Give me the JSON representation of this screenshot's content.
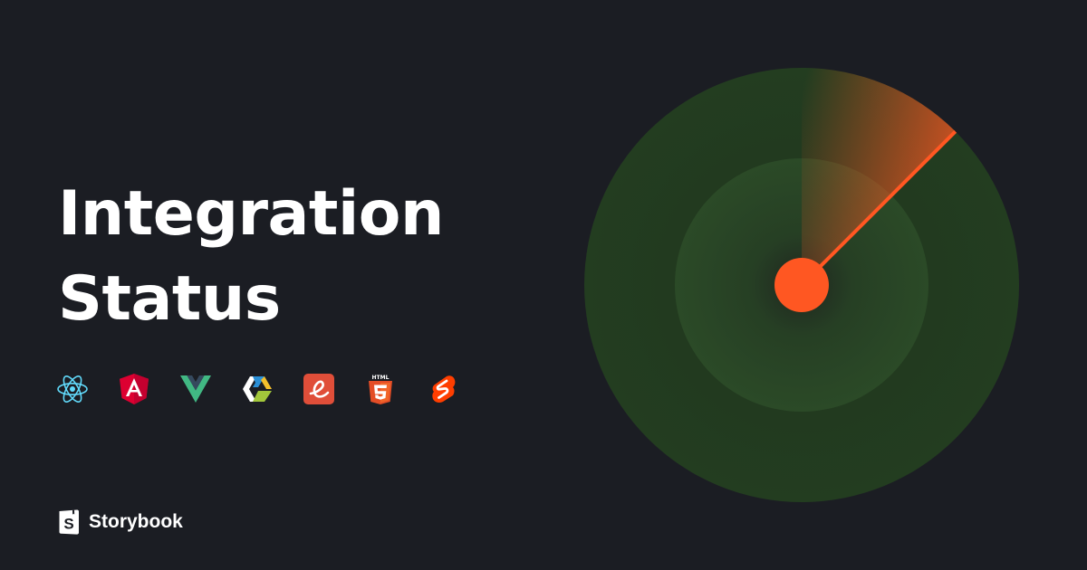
{
  "title": {
    "line1": "Integration",
    "line2": "Status"
  },
  "frameworks": [
    {
      "icon": "react-icon",
      "color": "#61dafb"
    },
    {
      "icon": "angular-icon",
      "color": "#dd0031"
    },
    {
      "icon": "vue-icon",
      "color": "#41b883"
    },
    {
      "icon": "web-components-icon",
      "color": "#a2c73b"
    },
    {
      "icon": "ember-icon",
      "color": "#e04e39"
    },
    {
      "icon": "html5-icon",
      "color": "#e44d26"
    },
    {
      "icon": "svelte-icon",
      "color": "#ff3e00"
    }
  ],
  "brand": {
    "name": "Storybook",
    "icon": "storybook-logo-icon"
  },
  "colors": {
    "background": "#1b1d23",
    "radar_outer": "#22361f",
    "radar_inner": "#2a4626",
    "sweep": "#ff5722"
  }
}
